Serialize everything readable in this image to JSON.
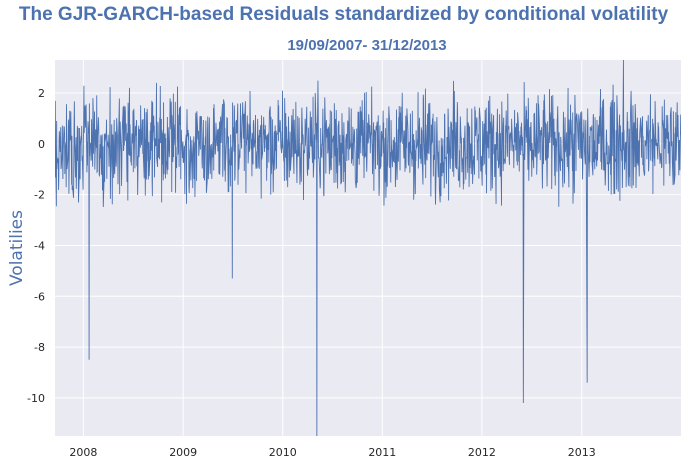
{
  "chart_data": {
    "type": "line",
    "title": "The GJR-GARCH-based Residuals standardized by conditional volatility",
    "subtitle": "19/09/2007- 31/12/2013",
    "xlabel": "",
    "ylabel": "Volatilies",
    "x_range": [
      "2007-09-19",
      "2013-12-31"
    ],
    "ylim": [
      -11.5,
      3.3
    ],
    "grid": true,
    "legend": "none",
    "line_color": "#4c72b0",
    "background": "#eaeaf2",
    "x_ticks": [
      "2008",
      "2009",
      "2010",
      "2011",
      "2012",
      "2013"
    ],
    "y_ticks": [
      2,
      0,
      -2,
      -4,
      -6,
      -8,
      -10
    ],
    "series": [
      {
        "baseline": {
          "noise_amplitude": 1.0,
          "typical_range": [
            -2.5,
            2.5
          ]
        },
        "extremes": [
          {
            "date": "2008-01-22",
            "value": -8.5
          },
          {
            "date": "2009-06-30",
            "value": -5.3
          },
          {
            "date": "2010-05-06",
            "value": -11.5
          },
          {
            "date": "2012-06-01",
            "value": -10.2
          },
          {
            "date": "2013-01-21",
            "value": -9.4
          },
          {
            "date": "2013-06-03",
            "value": 3.3
          }
        ]
      }
    ]
  }
}
